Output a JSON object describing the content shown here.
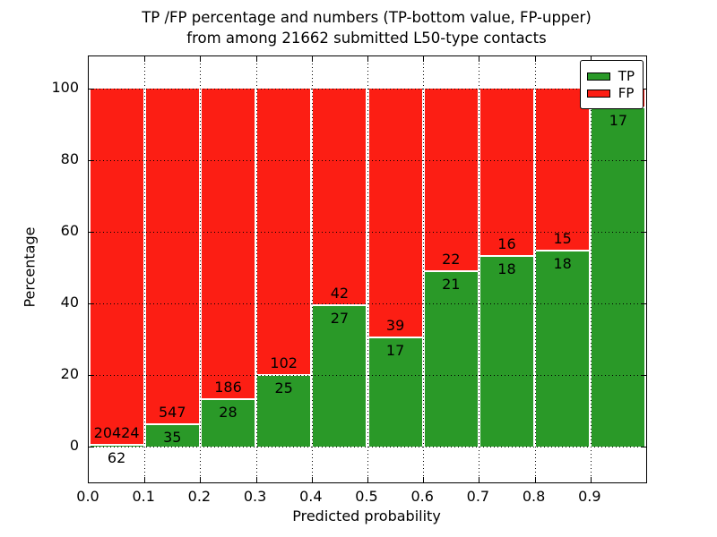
{
  "chart_data": {
    "type": "bar",
    "subtype": "stacked-percentage",
    "title_line1": "TP /FP percentage and numbers (TP-bottom value, FP-upper)",
    "title_line2": "from among 21662 submitted L50-type contacts",
    "xlabel": "Predicted probability",
    "ylabel": "Percentage",
    "x_ticks": [
      "0.0",
      "0.1",
      "0.2",
      "0.3",
      "0.4",
      "0.5",
      "0.6",
      "0.7",
      "0.8",
      "0.9"
    ],
    "y_ticks": [
      0,
      20,
      40,
      60,
      80,
      100
    ],
    "ylim": [
      -10,
      109
    ],
    "xlim": [
      0.0,
      1.0
    ],
    "grid": "dotted",
    "legend_position": "upper right",
    "total_submitted_contacts": 21662,
    "categories": [
      "0.0-0.1",
      "0.1-0.2",
      "0.2-0.3",
      "0.3-0.4",
      "0.4-0.5",
      "0.5-0.6",
      "0.6-0.7",
      "0.7-0.8",
      "0.8-0.9",
      "0.9-1.0"
    ],
    "series": [
      {
        "name": "TP",
        "values": [
          62,
          35,
          28,
          25,
          27,
          17,
          21,
          18,
          18,
          17
        ]
      },
      {
        "name": "FP",
        "values": [
          20424,
          547,
          186,
          102,
          42,
          39,
          22,
          16,
          15,
          null
        ]
      }
    ],
    "fp_last_bin_note": "FP count label for 0.9-1.0 bin hidden behind legend",
    "bars": [
      {
        "tp_label": "62",
        "fp_label": "20424",
        "tp_pct": 0.3
      },
      {
        "tp_label": "35",
        "fp_label": "547",
        "tp_pct": 6.01
      },
      {
        "tp_label": "28",
        "fp_label": "186",
        "tp_pct": 13.08
      },
      {
        "tp_label": "25",
        "fp_label": "102",
        "tp_pct": 19.69
      },
      {
        "tp_label": "27",
        "fp_label": "42",
        "tp_pct": 39.13
      },
      {
        "tp_label": "17",
        "fp_label": "39",
        "tp_pct": 30.36
      },
      {
        "tp_label": "21",
        "fp_label": "22",
        "tp_pct": 48.84
      },
      {
        "tp_label": "18",
        "fp_label": "16",
        "tp_pct": 52.94
      },
      {
        "tp_label": "18",
        "fp_label": "15",
        "tp_pct": 54.55
      },
      {
        "tp_label": "17",
        "fp_label": "",
        "tp_pct": 94.4
      }
    ],
    "legend": [
      {
        "label": "TP",
        "color": "#2a9928"
      },
      {
        "label": "FP",
        "color": "#fc1e14"
      }
    ],
    "colors": {
      "tp": "#2a9928",
      "fp": "#fc1e14",
      "axis": "#000000",
      "background": "#ffffff"
    }
  }
}
